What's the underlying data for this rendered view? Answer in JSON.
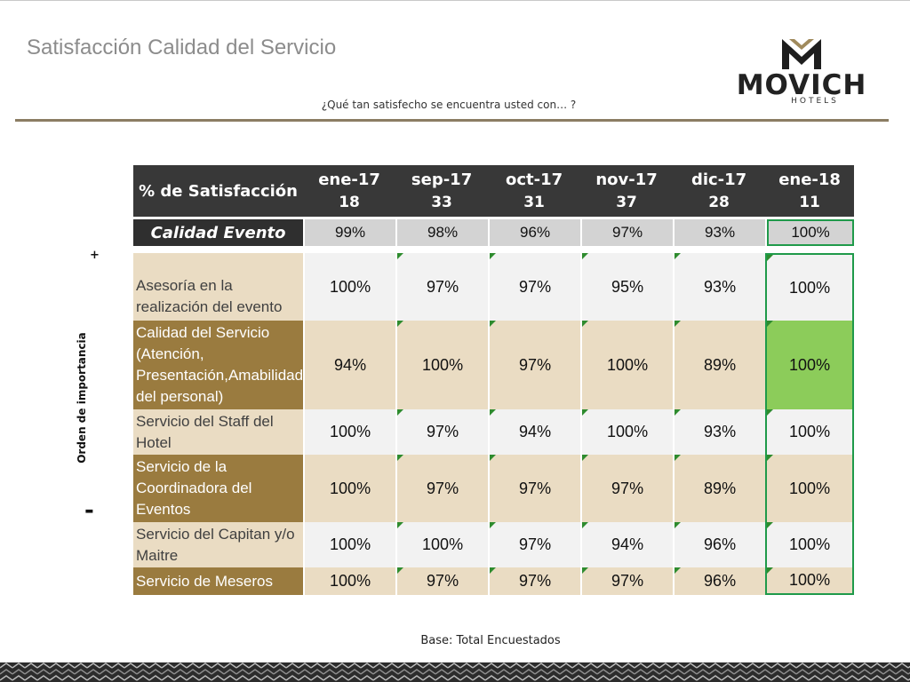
{
  "header": {
    "title": "Satisfacción Calidad del Servicio",
    "subtitle": "¿Qué tan satisfecho se encuentra usted con… ?",
    "logo_word": "MOVICH",
    "logo_sub": "HOTELS",
    "brand_color": "#8b7d63"
  },
  "side": {
    "label": "Orden de importancia",
    "plus": "+",
    "minus": "-"
  },
  "table": {
    "header_label": "% de Satisfacción",
    "columns": [
      {
        "month": "ene-17",
        "base": "18"
      },
      {
        "month": "sep-17",
        "base": "33"
      },
      {
        "month": "oct-17",
        "base": "31"
      },
      {
        "month": "nov-17",
        "base": "37"
      },
      {
        "month": "dic-17",
        "base": "28"
      },
      {
        "month": "ene-18",
        "base": "11"
      }
    ],
    "summary": {
      "label": "Calidad Evento",
      "values": [
        "99%",
        "98%",
        "96%",
        "97%",
        "93%",
        "100%"
      ]
    },
    "rows": [
      {
        "label": "Asesoría en la realización del evento",
        "values": [
          "100%",
          "97%",
          "97%",
          "95%",
          "93%",
          "100%"
        ]
      },
      {
        "label": "Calidad del Servicio (Atención, Presentación,Amabilidad del personal)",
        "values": [
          "94%",
          "100%",
          "97%",
          "100%",
          "89%",
          "100%"
        ]
      },
      {
        "label": "Servicio del Staff del Hotel",
        "values": [
          "100%",
          "97%",
          "94%",
          "100%",
          "93%",
          "100%"
        ]
      },
      {
        "label": "Servicio de la Coordinadora del Eventos",
        "values": [
          "100%",
          "97%",
          "97%",
          "97%",
          "89%",
          "100%"
        ]
      },
      {
        "label": "Servicio del Capitan y/o Maitre",
        "values": [
          "100%",
          "100%",
          "97%",
          "94%",
          "96%",
          "100%"
        ]
      },
      {
        "label": "Servicio de Meseros",
        "values": [
          "100%",
          "97%",
          "97%",
          "97%",
          "96%",
          "100%"
        ]
      }
    ]
  },
  "footer": {
    "base_note": "Base: Total Encuestados"
  }
}
